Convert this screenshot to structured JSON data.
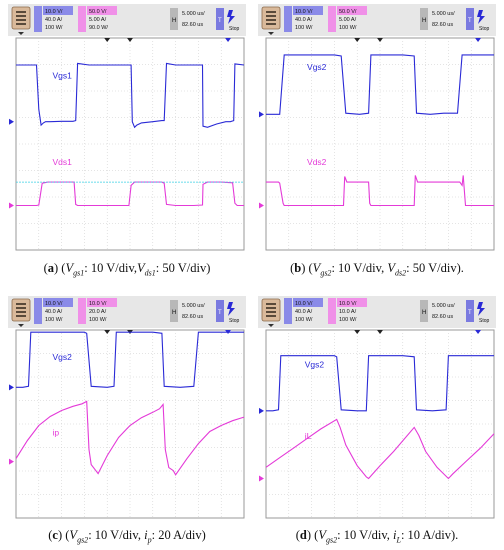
{
  "colors": {
    "ch1": "#2a2ad6",
    "ch2": "#e43ad8",
    "ch_aux": "#3ad0e6",
    "grid": "#c9c9c9",
    "header_bg": "#e7e7e7",
    "ch1_box": "#8a8ae8",
    "ch2_box": "#f090e8"
  },
  "chart_data": [
    {
      "type": "line",
      "panel": "a",
      "header": {
        "ch1": [
          "10.0 V/",
          "40.0 A/",
          "100 W/"
        ],
        "ch2": [
          "50.0 V/",
          "5.00 A/",
          "90.0 W/"
        ],
        "timebase": "5.000 us/",
        "h_pos": "82.60 us",
        "h_label": "H",
        "t_label": "T",
        "status": "Stop"
      },
      "trace_labels": [
        "Vgs1",
        "Vds1"
      ],
      "caption": {
        "letter": "a",
        "parts": [
          {
            "t": "(",
            "s": ""
          },
          {
            "t": "a",
            "s": "b"
          },
          {
            "t": ") (",
            "s": ""
          },
          {
            "t": "V",
            "s": "i"
          },
          {
            "t": "gs1",
            "s": "sub"
          },
          {
            "t": ": 10 V/div,",
            "s": ""
          },
          {
            "t": "V",
            "s": "i"
          },
          {
            "t": "ds1",
            "s": "sub"
          },
          {
            "t": ": 50 V/div)",
            "s": ""
          }
        ]
      },
      "series": [
        {
          "name": "Vgs1",
          "color_key": "ch1",
          "x": [
            0,
            0.1,
            0.3,
            0.6,
            0.9,
            1.0,
            1.1,
            1.2,
            1.3,
            1.5,
            2.0,
            2.5,
            2.62,
            2.7,
            3.2,
            3.3,
            3.5,
            3.8,
            4.0,
            4.5,
            5.0,
            5.05,
            5.1,
            5.2,
            5.3,
            5.5,
            6.0,
            6.4,
            6.5,
            6.6,
            7.0,
            7.5,
            8.0,
            8.18,
            8.2,
            8.4,
            8.8,
            9.2,
            9.4,
            9.55,
            9.6,
            10
          ],
          "y": [
            2.55,
            2.55,
            2.55,
            2.55,
            2.55,
            0.55,
            -0.15,
            -0.05,
            0.0,
            0.0,
            0.02,
            0.02,
            0.05,
            2.62,
            2.55,
            2.55,
            2.55,
            2.55,
            2.55,
            2.55,
            2.55,
            2.55,
            0.0,
            -0.25,
            -0.15,
            -0.05,
            0.0,
            0.05,
            0.05,
            2.62,
            2.55,
            2.55,
            2.55,
            2.55,
            -0.2,
            -0.25,
            -0.1,
            0.0,
            0.0,
            0.05,
            2.6,
            2.55
          ]
        },
        {
          "name": "Vds1",
          "color_key": "ch2",
          "x": [
            0,
            0.9,
            1.0,
            1.15,
            1.4,
            2.0,
            2.55,
            2.62,
            2.7,
            3.0,
            4.0,
            4.95,
            5.05,
            5.2,
            5.6,
            6.4,
            6.5,
            6.6,
            7.0,
            7.8,
            8.18,
            8.2,
            8.4,
            9.0,
            9.5,
            9.6,
            9.7,
            10
          ],
          "y": [
            0.0,
            0.0,
            0.02,
            1.0,
            1.05,
            1.05,
            1.05,
            0.05,
            0.0,
            0.0,
            0.0,
            0.0,
            0.9,
            1.05,
            1.05,
            1.05,
            1.0,
            0.05,
            0.0,
            0.0,
            0.02,
            0.95,
            1.05,
            1.05,
            1.02,
            0.1,
            0.0,
            0.0
          ]
        },
        {
          "name": "",
          "color_key": "ch_aux",
          "x": [
            0,
            10
          ],
          "y": [
            1.05,
            1.05
          ]
        }
      ]
    },
    {
      "type": "line",
      "panel": "b",
      "header": {
        "ch1": [
          "10.0 V/",
          "40.0 A/",
          "100 W/"
        ],
        "ch2": [
          "50.0 V/",
          "5.00 A/",
          "100 W/"
        ],
        "timebase": "5.000 us/",
        "h_pos": "82.60 us",
        "h_label": "H",
        "t_label": "T",
        "status": "Stop"
      },
      "trace_labels": [
        "Vgs2",
        "Vds2"
      ],
      "caption": {
        "letter": "b",
        "parts": [
          {
            "t": "(",
            "s": ""
          },
          {
            "t": "b",
            "s": "b"
          },
          {
            "t": ") (",
            "s": ""
          },
          {
            "t": "V",
            "s": "i"
          },
          {
            "t": "gs2",
            "s": "sub"
          },
          {
            "t": ": 10 V/div, ",
            "s": ""
          },
          {
            "t": "V",
            "s": "i"
          },
          {
            "t": "ds2",
            "s": "sub"
          },
          {
            "t": ": 50 V/div).",
            "s": ""
          }
        ]
      },
      "series": [
        {
          "name": "Vgs2",
          "color_key": "ch1",
          "x": [
            0,
            0.3,
            0.6,
            0.8,
            1.4,
            2.0,
            2.5,
            3.0,
            3.3,
            3.5,
            4.1,
            4.5,
            4.6,
            5.0,
            5.5,
            6.0,
            6.5,
            6.6,
            7.2,
            7.8,
            8.4,
            8.6,
            9.2,
            9.6,
            10
          ],
          "y": [
            0.0,
            0.0,
            0.0,
            2.55,
            2.55,
            2.55,
            2.55,
            2.55,
            2.5,
            0.05,
            0.0,
            0.05,
            2.55,
            2.55,
            2.55,
            2.55,
            2.5,
            0.05,
            0.0,
            0.05,
            0.05,
            2.55,
            2.55,
            2.55,
            2.55
          ]
        },
        {
          "name": "Vds2",
          "color_key": "ch2",
          "x": [
            0,
            0.4,
            0.55,
            0.6,
            0.75,
            0.8,
            1.2,
            2.0,
            3.0,
            3.4,
            3.45,
            3.55,
            3.6,
            3.75,
            4.2,
            4.5,
            4.55,
            4.6,
            5.0,
            6.0,
            6.5,
            6.55,
            6.65,
            6.7,
            7.0,
            7.8,
            8.5,
            8.6,
            8.65,
            8.75,
            9.5,
            10
          ],
          "y": [
            1.05,
            1.05,
            1.05,
            1.0,
            0.1,
            0.0,
            0.0,
            0.0,
            0.0,
            0.0,
            1.3,
            1.05,
            1.05,
            1.05,
            1.05,
            1.05,
            0.1,
            0.0,
            0.0,
            0.0,
            0.0,
            1.35,
            1.05,
            1.05,
            1.05,
            1.05,
            1.05,
            0.9,
            1.35,
            0.0,
            0.0,
            0.0
          ]
        }
      ]
    },
    {
      "type": "line",
      "panel": "c",
      "header": {
        "ch1": [
          "10.0 V/",
          "40.0 A/",
          "100 W/"
        ],
        "ch2": [
          "10.0 V/",
          "20.0 A/",
          "100 W/"
        ],
        "timebase": "5.000 us/",
        "h_pos": "82.60 us",
        "h_label": "H",
        "t_label": "T",
        "status": "Stop"
      },
      "trace_labels": [
        "Vgs2",
        "ip"
      ],
      "caption": {
        "letter": "c",
        "parts": [
          {
            "t": "(",
            "s": ""
          },
          {
            "t": "c",
            "s": "b"
          },
          {
            "t": ") (",
            "s": ""
          },
          {
            "t": "V",
            "s": "i"
          },
          {
            "t": "gs2",
            "s": "sub"
          },
          {
            "t": ": 10 V/div, ",
            "s": ""
          },
          {
            "t": "i",
            "s": "i"
          },
          {
            "t": "p",
            "s": "sub"
          },
          {
            "t": ": 20 A/div)",
            "s": ""
          }
        ]
      },
      "series": [
        {
          "name": "Vgs2",
          "color_key": "ch1",
          "x": [
            0,
            0.3,
            0.55,
            0.65,
            1.4,
            2.0,
            2.5,
            3.0,
            3.1,
            3.3,
            4.0,
            4.3,
            4.4,
            5.0,
            5.5,
            6.0,
            6.4,
            6.5,
            7.2,
            7.8,
            8.0,
            8.1,
            9.0,
            9.5,
            10
          ],
          "y": [
            0.0,
            0.0,
            0.05,
            2.55,
            2.55,
            2.55,
            2.55,
            2.55,
            2.5,
            0.05,
            0.0,
            0.05,
            2.55,
            2.55,
            2.55,
            2.55,
            2.5,
            0.05,
            0.0,
            0.05,
            2.55,
            2.55,
            2.55,
            2.55,
            2.55
          ]
        },
        {
          "name": "ip",
          "color_key": "ch2",
          "x": [
            0,
            0.5,
            1.0,
            1.5,
            2.0,
            2.5,
            2.9,
            3.1,
            3.2,
            3.3,
            3.5,
            3.6,
            4.0,
            4.5,
            5.0,
            5.5,
            6.0,
            6.3,
            6.45,
            6.55,
            6.7,
            6.9,
            7.0,
            7.5,
            8.0,
            8.5,
            9.0,
            9.5,
            10
          ],
          "y": [
            0.05,
            0.35,
            0.6,
            0.75,
            0.85,
            0.92,
            0.96,
            1.0,
            0.2,
            -0.05,
            -0.15,
            -0.2,
            0.1,
            0.4,
            0.6,
            0.73,
            0.82,
            0.88,
            0.95,
            0.2,
            -0.1,
            -0.15,
            -0.22,
            0.05,
            0.3,
            0.5,
            0.6,
            0.68,
            0.74
          ]
        }
      ]
    },
    {
      "type": "line",
      "panel": "d",
      "header": {
        "ch1": [
          "10.0 V/",
          "40.0 A/",
          "100 W/"
        ],
        "ch2": [
          "10.0 V/",
          "10.0 A/",
          "100 W/"
        ],
        "timebase": "5.000 us/",
        "h_pos": "82.60 us",
        "h_label": "H",
        "t_label": "T",
        "status": "Stop"
      },
      "trace_labels": [
        "Vgs2",
        "iL"
      ],
      "caption": {
        "letter": "d",
        "parts": [
          {
            "t": "(",
            "s": ""
          },
          {
            "t": "d",
            "s": "b"
          },
          {
            "t": ") (",
            "s": ""
          },
          {
            "t": "V",
            "s": "i"
          },
          {
            "t": "gs2",
            "s": "sub"
          },
          {
            "t": ": 10 V/div, ",
            "s": ""
          },
          {
            "t": "i",
            "s": "i"
          },
          {
            "t": "L",
            "s": "sub"
          },
          {
            "t": ": 10 A/div).",
            "s": ""
          }
        ]
      },
      "series": [
        {
          "name": "Vgs2",
          "color_key": "ch1",
          "x": [
            0,
            0.3,
            0.55,
            0.65,
            1.4,
            2.0,
            2.5,
            3.0,
            3.1,
            3.3,
            4.0,
            4.4,
            4.5,
            5.0,
            5.5,
            6.0,
            6.5,
            6.6,
            7.3,
            7.9,
            8.0,
            8.1,
            9.0,
            9.5,
            10
          ],
          "y": [
            0.0,
            0.0,
            0.05,
            2.55,
            2.55,
            2.55,
            2.55,
            2.55,
            2.5,
            0.05,
            0.0,
            0.0,
            2.55,
            2.55,
            2.55,
            2.55,
            2.5,
            0.05,
            0.0,
            0.05,
            2.55,
            2.55,
            2.55,
            2.55,
            2.55
          ]
        },
        {
          "name": "iL",
          "color_key": "ch2",
          "x": [
            0,
            0.6,
            1.2,
            1.8,
            2.4,
            3.1,
            3.25,
            3.5,
            4.0,
            4.4,
            4.5,
            5.0,
            5.6,
            6.5,
            6.7,
            7.0,
            7.5,
            8.0,
            8.2,
            8.8,
            9.4,
            10
          ],
          "y": [
            0.35,
            0.65,
            0.95,
            1.25,
            1.55,
            1.85,
            1.6,
            1.05,
            0.4,
            0.05,
            0.0,
            0.4,
            0.85,
            1.6,
            1.35,
            0.85,
            0.35,
            0.0,
            0.15,
            0.55,
            0.95,
            1.4
          ]
        }
      ]
    }
  ]
}
